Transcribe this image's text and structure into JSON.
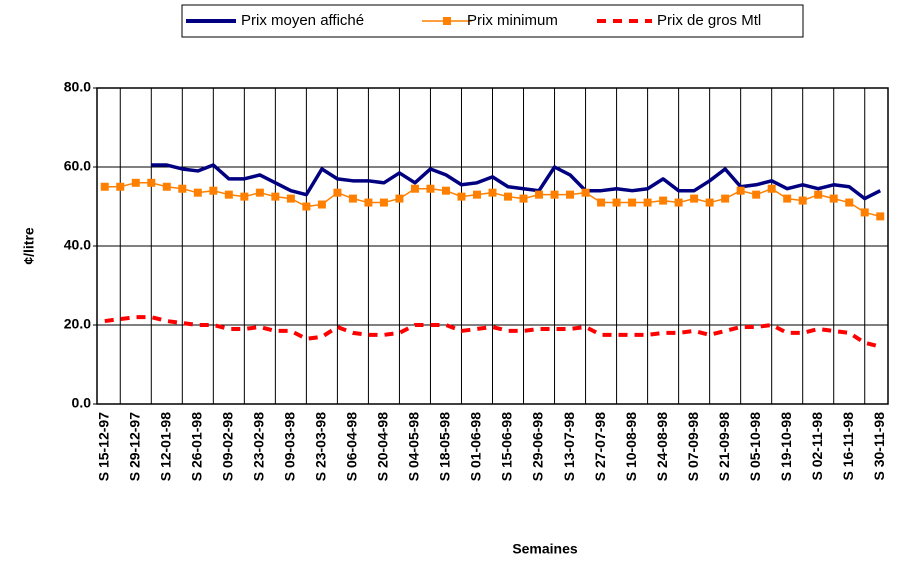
{
  "chart_data": {
    "type": "line",
    "x_label": "Semaines",
    "y_label": "¢/litre",
    "categories": [
      "S 15-12-97",
      null,
      "S 29-12-97",
      null,
      "S 12-01-98",
      null,
      "S 26-01-98",
      null,
      "S 09-02-98",
      null,
      "S 23-02-98",
      null,
      "S 09-03-98",
      null,
      "S 23-03-98",
      null,
      "S 06-04-98",
      null,
      "S 20-04-98",
      null,
      "S 04-05-98",
      null,
      "S 18-05-98",
      null,
      "S 01-06-98",
      null,
      "S 15-06-98",
      null,
      "S 29-06-98",
      null,
      "S 13-07-98",
      null,
      "S 27-07-98",
      null,
      "S 10-08-98",
      null,
      "S 24-08-98",
      null,
      "S 07-09-98",
      null,
      "S 21-09-98",
      null,
      "S 05-10-98",
      null,
      "S 19-10-98",
      null,
      "S 02-11-98",
      null,
      "S 16-11-98",
      null,
      "S 30-11-98"
    ],
    "series": [
      {
        "name": "Prix moyen affiché",
        "color": "#000080",
        "style": "solid",
        "marker": false,
        "values": [
          null,
          null,
          null,
          60.5,
          60.5,
          59.5,
          59,
          60.5,
          57,
          57,
          58,
          56,
          54,
          53,
          59.5,
          57,
          56.5,
          56.5,
          56,
          58.5,
          56,
          59.5,
          58,
          55.5,
          56,
          57.5,
          55,
          54.5,
          54,
          60,
          58,
          54,
          54,
          54.5,
          54,
          54.5,
          57,
          54,
          54,
          56.5,
          59.5,
          55,
          55.5,
          56.5,
          54.5,
          55.5,
          54.5,
          55.5,
          55,
          52,
          54
        ]
      },
      {
        "name": "Prix minimum",
        "color": "#ff8000",
        "style": "solid",
        "marker": true,
        "values": [
          55,
          55,
          56,
          56,
          55,
          54.5,
          53.5,
          54,
          53,
          52.5,
          53.5,
          52.5,
          52,
          50,
          50.5,
          53.5,
          52,
          51,
          51,
          52,
          54.5,
          54.5,
          54,
          52.5,
          53,
          53.5,
          52.5,
          52,
          53,
          53,
          53,
          53.5,
          51,
          51,
          51,
          51,
          51.5,
          51,
          52,
          51,
          52,
          54,
          53,
          54.5,
          52,
          51.5,
          53,
          52,
          51,
          48.5,
          47.5
        ]
      },
      {
        "name": "Prix de gros Mtl",
        "color": "#ff0000",
        "style": "dashed",
        "marker": false,
        "values": [
          21,
          21.5,
          22,
          22,
          21,
          20.5,
          20,
          20,
          19,
          19,
          19.5,
          18.5,
          18.5,
          16.5,
          17,
          19.5,
          18,
          17.5,
          17.5,
          18,
          20,
          20,
          20,
          18.5,
          19,
          19.5,
          18.5,
          18.5,
          19,
          19,
          19,
          19.5,
          17.5,
          17.5,
          17.5,
          17.5,
          18,
          18,
          18.5,
          17.5,
          18.5,
          19.5,
          19.5,
          20,
          18,
          18,
          19,
          18.5,
          18,
          15.5,
          14.5
        ]
      }
    ],
    "ylim": [
      0,
      80
    ],
    "yticks": [
      {
        "value": 0,
        "label": "0.0"
      },
      {
        "value": 20,
        "label": "20.0"
      },
      {
        "value": 40,
        "label": "40.0"
      },
      {
        "value": 60,
        "label": "60.0"
      },
      {
        "value": 80,
        "label": "80.0"
      }
    ],
    "grid": true,
    "legend": "top"
  }
}
